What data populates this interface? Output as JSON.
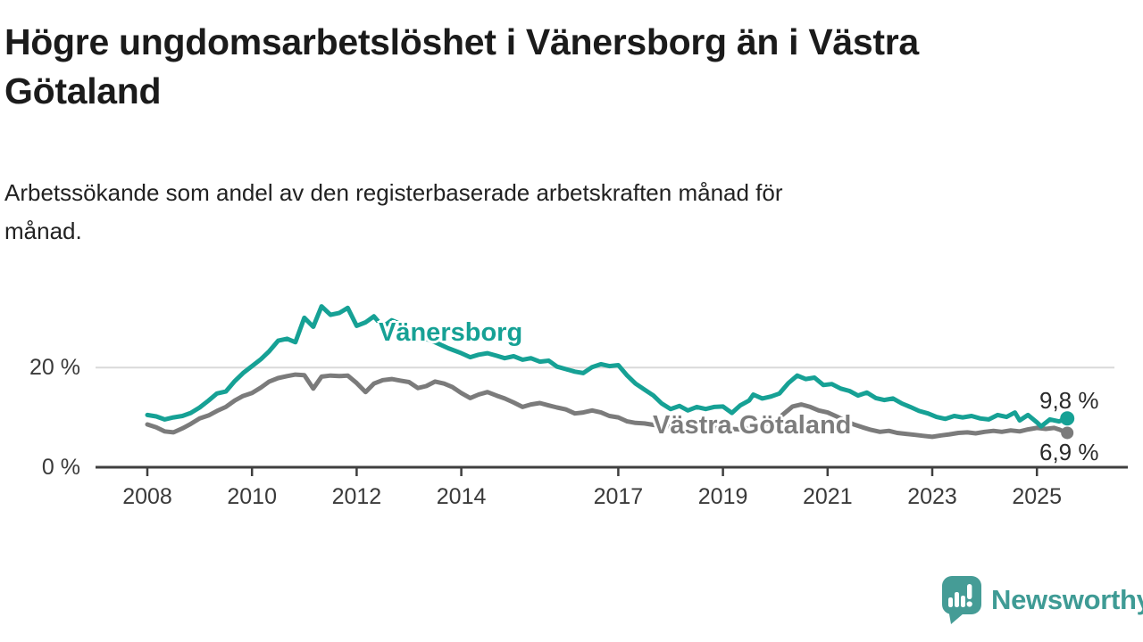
{
  "header": {
    "title": "Högre ungdomsarbetslöshet i Vänersborg än i Västra Götaland",
    "title_line1": "Högre ungdomsarbetslöshet i Vänersborg än i Västra",
    "title_line2": "Götaland",
    "subtitle": "Arbetssökande som andel av den registerbaserade arbetskraften månad för månad.",
    "subtitle_line1": "Arbetssökande som andel av den registerbaserade arbetskraften månad för",
    "subtitle_line2": "månad."
  },
  "colors": {
    "background": "#ffffff",
    "accent_teal": "#16a195",
    "line_gray": "#7b7b7b",
    "series_label_gray": "#7d7d7d",
    "grid": "#d9d9d9",
    "axis": "#3f3f3f",
    "title_text": "#1b1b1b",
    "body_text": "#222222",
    "tick_text": "#3a3a3a",
    "value_text": "#2a2a2a",
    "logo_teal": "#459c96",
    "logo_text_teal": "#3f9b95"
  },
  "chart_data": {
    "type": "line",
    "title": "Högre ungdomsarbetslöshet i Vänersborg än i Västra Götaland",
    "subtitle": "Arbetssökande som andel av den registerbaserade arbetskraften månad för månad.",
    "unit": "%",
    "grid": "single horizontal gridline at 20 %",
    "legend_position": "labels drawn on lines",
    "x_axis": {
      "range": [
        2007.9,
        2025.75
      ],
      "ticks": [
        "2008",
        "2010",
        "2012",
        "2014",
        "2017",
        "2019",
        "2021",
        "2023",
        "2025"
      ],
      "tick_years": [
        2008,
        2010,
        2012,
        2014,
        2017,
        2019,
        2021,
        2023,
        2025
      ]
    },
    "y_axis": {
      "range": [
        0,
        33
      ],
      "ticks": [
        {
          "value": 0,
          "label": "0 %"
        },
        {
          "value": 20,
          "label": "20 %"
        }
      ]
    },
    "series": [
      {
        "name": "Vänersborg",
        "color": "#16a195",
        "end_label": "9,8 %",
        "end_value": 9.8,
        "x": [
          2008.0,
          2008.17,
          2008.33,
          2008.5,
          2008.67,
          2008.83,
          2009.0,
          2009.17,
          2009.33,
          2009.5,
          2009.67,
          2009.83,
          2010.0,
          2010.17,
          2010.33,
          2010.5,
          2010.67,
          2010.83,
          2011.0,
          2011.17,
          2011.33,
          2011.5,
          2011.67,
          2011.83,
          2012.0,
          2012.17,
          2012.33,
          2012.5,
          2012.67,
          2012.83,
          2013.0,
          2013.25,
          2013.5,
          2013.75,
          2014.0,
          2014.17,
          2014.33,
          2014.5,
          2014.67,
          2014.83,
          2015.0,
          2015.17,
          2015.33,
          2015.5,
          2015.67,
          2015.83,
          2016.0,
          2016.17,
          2016.33,
          2016.5,
          2016.67,
          2016.83,
          2017.0,
          2017.17,
          2017.33,
          2017.5,
          2017.67,
          2017.83,
          2018.0,
          2018.17,
          2018.33,
          2018.5,
          2018.67,
          2018.83,
          2019.0,
          2019.17,
          2019.33,
          2019.5,
          2019.58,
          2019.75,
          2019.92,
          2020.08,
          2020.25,
          2020.42,
          2020.58,
          2020.75,
          2020.92,
          2021.08,
          2021.25,
          2021.42,
          2021.58,
          2021.75,
          2021.92,
          2022.08,
          2022.25,
          2022.42,
          2022.58,
          2022.75,
          2022.92,
          2023.08,
          2023.25,
          2023.42,
          2023.58,
          2023.75,
          2023.92,
          2024.08,
          2024.25,
          2024.42,
          2024.58,
          2024.67,
          2024.83,
          2025.0,
          2025.08,
          2025.25,
          2025.42,
          2025.58
        ],
        "values": [
          10.5,
          10.2,
          9.6,
          10.0,
          10.3,
          10.9,
          12.0,
          13.4,
          14.8,
          15.2,
          17.3,
          18.9,
          20.3,
          21.7,
          23.3,
          25.4,
          25.8,
          25.1,
          30.0,
          28.2,
          32.3,
          30.6,
          31.0,
          32.0,
          28.4,
          29.1,
          30.3,
          28.2,
          29.5,
          28.8,
          27.2,
          26.1,
          25.1,
          23.9,
          22.9,
          22.1,
          22.6,
          22.9,
          22.4,
          21.9,
          22.3,
          21.6,
          21.9,
          21.2,
          21.4,
          20.2,
          19.7,
          19.2,
          18.9,
          20.1,
          20.7,
          20.3,
          20.5,
          18.4,
          16.8,
          15.6,
          14.4,
          12.8,
          11.7,
          12.3,
          11.4,
          12.1,
          11.7,
          12.1,
          12.2,
          10.9,
          12.4,
          13.4,
          14.6,
          13.8,
          14.2,
          14.8,
          16.9,
          18.4,
          17.7,
          18.0,
          16.5,
          16.7,
          15.8,
          15.3,
          14.4,
          15.0,
          13.9,
          13.5,
          13.8,
          12.8,
          12.1,
          11.3,
          10.8,
          10.1,
          9.7,
          10.3,
          10.0,
          10.3,
          9.8,
          9.6,
          10.5,
          10.1,
          11.0,
          9.4,
          10.5,
          9.0,
          8.2,
          9.6,
          9.2,
          9.8
        ]
      },
      {
        "name": "Västra Götaland",
        "color": "#7b7b7b",
        "end_label": "6,9 %",
        "end_value": 6.9,
        "x": [
          2008.0,
          2008.17,
          2008.33,
          2008.5,
          2008.67,
          2008.83,
          2009.0,
          2009.17,
          2009.33,
          2009.5,
          2009.67,
          2009.83,
          2010.0,
          2010.17,
          2010.33,
          2010.5,
          2010.67,
          2010.83,
          2011.0,
          2011.17,
          2011.33,
          2011.5,
          2011.67,
          2011.83,
          2012.0,
          2012.17,
          2012.33,
          2012.5,
          2012.67,
          2012.83,
          2013.0,
          2013.17,
          2013.33,
          2013.5,
          2013.67,
          2013.83,
          2014.0,
          2014.17,
          2014.33,
          2014.5,
          2014.67,
          2014.83,
          2015.0,
          2015.17,
          2015.33,
          2015.5,
          2015.67,
          2015.83,
          2016.0,
          2016.17,
          2016.33,
          2016.5,
          2016.67,
          2016.83,
          2017.0,
          2017.17,
          2017.33,
          2017.5,
          2017.67,
          2017.83,
          2018.0,
          2018.33,
          2018.67,
          2019.0,
          2019.33,
          2019.67,
          2020.0,
          2020.17,
          2020.33,
          2020.5,
          2020.67,
          2020.83,
          2021.0,
          2021.17,
          2021.33,
          2021.5,
          2021.67,
          2021.83,
          2022.0,
          2022.17,
          2022.33,
          2022.5,
          2022.67,
          2022.83,
          2023.0,
          2023.17,
          2023.33,
          2023.5,
          2023.67,
          2023.83,
          2024.0,
          2024.17,
          2024.33,
          2024.5,
          2024.67,
          2024.83,
          2025.0,
          2025.17,
          2025.33,
          2025.42,
          2025.58
        ],
        "values": [
          8.6,
          8.0,
          7.2,
          7.0,
          7.8,
          8.7,
          9.8,
          10.4,
          11.3,
          12.1,
          13.4,
          14.3,
          14.9,
          16.0,
          17.2,
          17.9,
          18.3,
          18.6,
          18.5,
          15.8,
          18.2,
          18.4,
          18.3,
          18.4,
          16.9,
          15.1,
          16.8,
          17.5,
          17.7,
          17.4,
          17.1,
          15.9,
          16.3,
          17.2,
          16.8,
          16.1,
          14.9,
          13.9,
          14.6,
          15.1,
          14.4,
          13.8,
          13.0,
          12.1,
          12.6,
          12.9,
          12.4,
          12.0,
          11.6,
          10.8,
          11.0,
          11.4,
          11.0,
          10.3,
          10.0,
          9.2,
          8.9,
          8.8,
          8.5,
          8.3,
          8.2,
          8.0,
          7.9,
          7.8,
          7.6,
          8.2,
          9.3,
          10.8,
          12.2,
          12.6,
          12.1,
          11.4,
          11.0,
          10.2,
          9.4,
          8.6,
          8.0,
          7.5,
          7.1,
          7.3,
          6.9,
          6.7,
          6.5,
          6.3,
          6.1,
          6.4,
          6.6,
          6.9,
          7.0,
          6.8,
          7.1,
          7.3,
          7.1,
          7.4,
          7.2,
          7.6,
          7.9,
          7.7,
          7.9,
          7.6,
          6.9
        ]
      }
    ]
  },
  "footer": {
    "brand": "Newsworthy"
  }
}
